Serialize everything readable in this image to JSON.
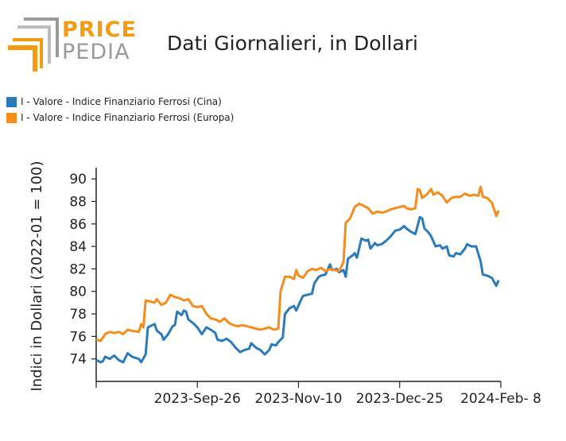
{
  "logo": {
    "word1": "PRICE",
    "word2": "PEDIA"
  },
  "title": "Dati Giornalieri, in Dollari",
  "colors": {
    "cina": "#2b7bb9",
    "europa": "#f58c1e",
    "logo_orange": "#f39c12",
    "logo_gray": "#9a9a9a"
  },
  "legend": [
    {
      "label": "I - Valore - Indice Finanziario Ferrosi (Cina)",
      "color": "#2b7bb9"
    },
    {
      "label": "I - Valore - Indice Finanziario Ferrosi (Europa)",
      "color": "#f58c1e"
    }
  ],
  "chart_data": {
    "type": "line",
    "ylabel": "Indici in Dollari (2022-01 = 100)",
    "xlabel": "",
    "ylim": [
      72,
      91
    ],
    "yticks": [
      74,
      76,
      78,
      80,
      82,
      84,
      86,
      88,
      90
    ],
    "xlim": [
      "2023-08-12",
      "2024-02-08"
    ],
    "xticks": [
      {
        "date": "2023-08-12",
        "label": ""
      },
      {
        "date": "2023-09-26",
        "label": "2023-Sep-26"
      },
      {
        "date": "2023-11-10",
        "label": "2023-Nov-10"
      },
      {
        "date": "2023-12-25",
        "label": "2023-Dec-25"
      },
      {
        "date": "2024-02-08",
        "label": "2024-Feb- 8"
      }
    ],
    "grid": false,
    "legend_position": "top-left",
    "series": [
      {
        "name": "I - Valore - Indice Finanziario Ferrosi (Cina)",
        "color": "#2b7bb9",
        "points": [
          [
            "2023-08-12",
            73.9
          ],
          [
            "2023-08-14",
            73.7
          ],
          [
            "2023-08-15",
            73.8
          ],
          [
            "2023-08-16",
            74.2
          ],
          [
            "2023-08-18",
            74.0
          ],
          [
            "2023-08-20",
            74.3
          ],
          [
            "2023-08-22",
            73.9
          ],
          [
            "2023-08-24",
            73.7
          ],
          [
            "2023-08-26",
            74.5
          ],
          [
            "2023-08-28",
            74.2
          ],
          [
            "2023-08-31",
            74.0
          ],
          [
            "2023-09-01",
            73.7
          ],
          [
            "2023-09-03",
            74.4
          ],
          [
            "2023-09-04",
            76.8
          ],
          [
            "2023-09-06",
            77.0
          ],
          [
            "2023-09-07",
            77.1
          ],
          [
            "2023-09-08",
            76.5
          ],
          [
            "2023-09-10",
            76.2
          ],
          [
            "2023-09-11",
            75.7
          ],
          [
            "2023-09-13",
            76.2
          ],
          [
            "2023-09-15",
            76.9
          ],
          [
            "2023-09-16",
            77.0
          ],
          [
            "2023-09-17",
            78.2
          ],
          [
            "2023-09-19",
            77.9
          ],
          [
            "2023-09-20",
            78.3
          ],
          [
            "2023-09-21",
            78.2
          ],
          [
            "2023-09-22",
            77.5
          ],
          [
            "2023-09-24",
            77.2
          ],
          [
            "2023-09-26",
            76.8
          ],
          [
            "2023-09-28",
            76.2
          ],
          [
            "2023-09-30",
            76.8
          ],
          [
            "2023-10-02",
            76.6
          ],
          [
            "2023-10-04",
            76.3
          ],
          [
            "2023-10-05",
            75.7
          ],
          [
            "2023-10-07",
            75.6
          ],
          [
            "2023-10-09",
            75.8
          ],
          [
            "2023-10-11",
            75.5
          ],
          [
            "2023-10-13",
            75.0
          ],
          [
            "2023-10-15",
            74.6
          ],
          [
            "2023-10-17",
            74.8
          ],
          [
            "2023-10-19",
            74.9
          ],
          [
            "2023-10-20",
            75.4
          ],
          [
            "2023-10-22",
            75.0
          ],
          [
            "2023-10-24",
            74.8
          ],
          [
            "2023-10-26",
            74.4
          ],
          [
            "2023-10-28",
            74.8
          ],
          [
            "2023-10-29",
            75.3
          ],
          [
            "2023-10-31",
            75.2
          ],
          [
            "2023-11-01",
            75.5
          ],
          [
            "2023-11-03",
            75.9
          ],
          [
            "2023-11-04",
            78.0
          ],
          [
            "2023-11-06",
            78.5
          ],
          [
            "2023-11-08",
            78.7
          ],
          [
            "2023-11-09",
            78.3
          ],
          [
            "2023-11-11",
            79.2
          ],
          [
            "2023-11-12",
            79.6
          ],
          [
            "2023-11-14",
            79.7
          ],
          [
            "2023-11-16",
            79.8
          ],
          [
            "2023-11-17",
            80.7
          ],
          [
            "2023-11-19",
            81.3
          ],
          [
            "2023-11-20",
            81.4
          ],
          [
            "2023-11-22",
            81.5
          ],
          [
            "2023-11-24",
            82.4
          ],
          [
            "2023-11-25",
            81.9
          ],
          [
            "2023-11-27",
            82.0
          ],
          [
            "2023-11-28",
            81.7
          ],
          [
            "2023-11-30",
            81.9
          ],
          [
            "2023-12-01",
            81.3
          ],
          [
            "2023-12-02",
            82.9
          ],
          [
            "2023-12-04",
            83.2
          ],
          [
            "2023-12-05",
            83.4
          ],
          [
            "2023-12-06",
            83.0
          ],
          [
            "2023-12-08",
            84.7
          ],
          [
            "2023-12-10",
            84.5
          ],
          [
            "2023-12-11",
            84.6
          ],
          [
            "2023-12-12",
            83.8
          ],
          [
            "2023-12-14",
            84.3
          ],
          [
            "2023-12-15",
            84.1
          ],
          [
            "2023-12-17",
            84.2
          ],
          [
            "2023-12-19",
            84.5
          ],
          [
            "2023-12-21",
            84.9
          ],
          [
            "2023-12-23",
            85.4
          ],
          [
            "2023-12-25",
            85.5
          ],
          [
            "2023-12-27",
            85.8
          ],
          [
            "2023-12-28",
            85.6
          ],
          [
            "2023-12-30",
            85.3
          ],
          [
            "2024-01-01",
            85.1
          ],
          [
            "2024-01-03",
            86.6
          ],
          [
            "2024-01-04",
            86.5
          ],
          [
            "2024-01-05",
            85.6
          ],
          [
            "2024-01-07",
            85.2
          ],
          [
            "2024-01-08",
            84.9
          ],
          [
            "2024-01-10",
            84.0
          ],
          [
            "2024-01-12",
            84.1
          ],
          [
            "2024-01-13",
            83.8
          ],
          [
            "2024-01-15",
            84.0
          ],
          [
            "2024-01-16",
            83.2
          ],
          [
            "2024-01-18",
            83.1
          ],
          [
            "2024-01-19",
            83.4
          ],
          [
            "2024-01-21",
            83.3
          ],
          [
            "2024-01-23",
            83.8
          ],
          [
            "2024-01-24",
            84.2
          ],
          [
            "2024-01-26",
            84.0
          ],
          [
            "2024-01-28",
            84.0
          ],
          [
            "2024-01-30",
            82.7
          ],
          [
            "2024-01-31",
            81.5
          ],
          [
            "2024-02-02",
            81.4
          ],
          [
            "2024-02-04",
            81.2
          ],
          [
            "2024-02-06",
            80.5
          ],
          [
            "2024-02-07",
            81.0
          ]
        ]
      },
      {
        "name": "I - Valore - Indice Finanziario Ferrosi (Europa)",
        "color": "#f58c1e",
        "points": [
          [
            "2023-08-12",
            75.7
          ],
          [
            "2023-08-14",
            75.6
          ],
          [
            "2023-08-16",
            76.2
          ],
          [
            "2023-08-18",
            76.4
          ],
          [
            "2023-08-20",
            76.3
          ],
          [
            "2023-08-22",
            76.4
          ],
          [
            "2023-08-24",
            76.2
          ],
          [
            "2023-08-26",
            76.6
          ],
          [
            "2023-08-28",
            76.5
          ],
          [
            "2023-08-31",
            76.4
          ],
          [
            "2023-09-01",
            77.1
          ],
          [
            "2023-09-02",
            76.8
          ],
          [
            "2023-09-03",
            79.2
          ],
          [
            "2023-09-05",
            79.1
          ],
          [
            "2023-09-07",
            79.0
          ],
          [
            "2023-09-08",
            79.3
          ],
          [
            "2023-09-10",
            78.8
          ],
          [
            "2023-09-12",
            79.0
          ],
          [
            "2023-09-14",
            79.7
          ],
          [
            "2023-09-16",
            79.5
          ],
          [
            "2023-09-18",
            79.4
          ],
          [
            "2023-09-20",
            79.2
          ],
          [
            "2023-09-22",
            79.3
          ],
          [
            "2023-09-24",
            78.7
          ],
          [
            "2023-09-26",
            78.6
          ],
          [
            "2023-09-28",
            78.7
          ],
          [
            "2023-09-30",
            78.0
          ],
          [
            "2023-10-02",
            77.6
          ],
          [
            "2023-10-04",
            77.5
          ],
          [
            "2023-10-06",
            77.3
          ],
          [
            "2023-10-08",
            77.6
          ],
          [
            "2023-10-10",
            77.2
          ],
          [
            "2023-10-12",
            77.0
          ],
          [
            "2023-10-14",
            76.9
          ],
          [
            "2023-10-16",
            77.0
          ],
          [
            "2023-10-18",
            76.9
          ],
          [
            "2023-10-20",
            76.8
          ],
          [
            "2023-10-22",
            76.7
          ],
          [
            "2023-10-24",
            76.6
          ],
          [
            "2023-10-26",
            76.7
          ],
          [
            "2023-10-28",
            76.8
          ],
          [
            "2023-10-30",
            76.6
          ],
          [
            "2023-11-01",
            76.7
          ],
          [
            "2023-11-02",
            80.0
          ],
          [
            "2023-11-04",
            81.3
          ],
          [
            "2023-11-06",
            81.3
          ],
          [
            "2023-11-08",
            81.1
          ],
          [
            "2023-11-09",
            81.9
          ],
          [
            "2023-11-10",
            81.4
          ],
          [
            "2023-11-12",
            81.2
          ],
          [
            "2023-11-14",
            81.8
          ],
          [
            "2023-11-16",
            82.0
          ],
          [
            "2023-11-18",
            81.9
          ],
          [
            "2023-11-20",
            82.1
          ],
          [
            "2023-11-22",
            81.8
          ],
          [
            "2023-11-24",
            82.0
          ],
          [
            "2023-11-26",
            81.9
          ],
          [
            "2023-11-28",
            81.8
          ],
          [
            "2023-11-30",
            82.6
          ],
          [
            "2023-12-01",
            86.1
          ],
          [
            "2023-12-03",
            86.5
          ],
          [
            "2023-12-05",
            87.5
          ],
          [
            "2023-12-07",
            87.8
          ],
          [
            "2023-12-09",
            87.6
          ],
          [
            "2023-12-11",
            87.4
          ],
          [
            "2023-12-13",
            86.9
          ],
          [
            "2023-12-15",
            87.1
          ],
          [
            "2023-12-17",
            87.0
          ],
          [
            "2023-12-19",
            87.1
          ],
          [
            "2023-12-21",
            87.3
          ],
          [
            "2023-12-23",
            87.4
          ],
          [
            "2023-12-25",
            87.5
          ],
          [
            "2023-12-27",
            87.6
          ],
          [
            "2023-12-28",
            87.4
          ],
          [
            "2023-12-30",
            87.3
          ],
          [
            "2024-01-01",
            87.4
          ],
          [
            "2024-01-02",
            89.1
          ],
          [
            "2024-01-03",
            89.0
          ],
          [
            "2024-01-04",
            88.3
          ],
          [
            "2024-01-06",
            88.6
          ],
          [
            "2024-01-08",
            89.1
          ],
          [
            "2024-01-09",
            88.6
          ],
          [
            "2024-01-11",
            88.8
          ],
          [
            "2024-01-13",
            88.5
          ],
          [
            "2024-01-15",
            87.9
          ],
          [
            "2024-01-17",
            88.3
          ],
          [
            "2024-01-19",
            88.4
          ],
          [
            "2024-01-21",
            88.4
          ],
          [
            "2024-01-23",
            88.7
          ],
          [
            "2024-01-25",
            88.5
          ],
          [
            "2024-01-27",
            88.6
          ],
          [
            "2024-01-29",
            88.5
          ],
          [
            "2024-01-30",
            89.3
          ],
          [
            "2024-01-31",
            88.4
          ],
          [
            "2024-02-02",
            88.3
          ],
          [
            "2024-02-04",
            87.9
          ],
          [
            "2024-02-06",
            86.7
          ],
          [
            "2024-02-07",
            87.2
          ]
        ]
      }
    ]
  }
}
